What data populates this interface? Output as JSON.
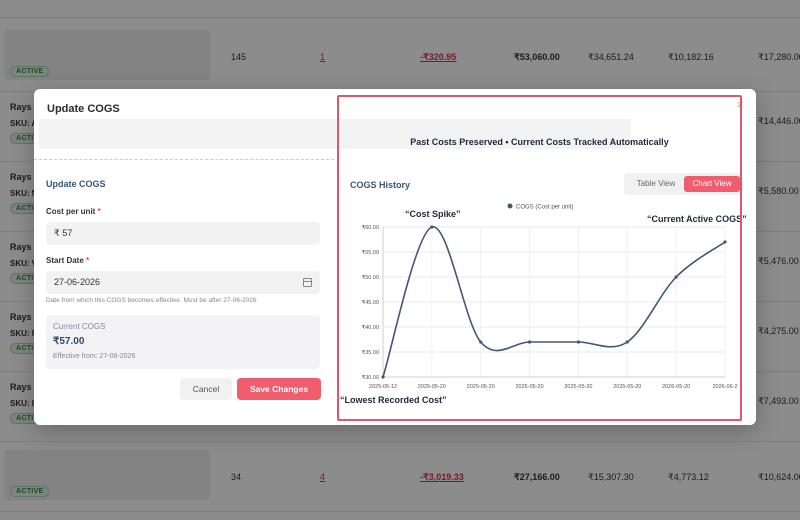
{
  "background": {
    "rows": [
      {
        "top": -20,
        "qty": "",
        "orders": "",
        "loss": "",
        "revenue": "",
        "c1": "",
        "c2": "",
        "c3": ""
      },
      {
        "qty": "145",
        "orders": "1",
        "loss": "-₹320.95",
        "revenue": "₹53,060.00",
        "c1": "₹34,651.24",
        "c2": "₹10,182.16",
        "c3": "₹17,280.00",
        "badge": "ACTIVE"
      },
      {
        "name": "Rays",
        "sku": "SKU: A",
        "badge": "ACTIV",
        "c3": "₹14,446.00"
      },
      {
        "name": "Rays",
        "sku": "SKU: N",
        "badge": "ACTIV",
        "c3": "₹5,580.00"
      },
      {
        "name": "Rays",
        "sku": "SKU: V",
        "badge": "ACTIV",
        "c3": "₹5,476.00"
      },
      {
        "name": "Rays",
        "sku": "SKU: F",
        "badge": "ACTIV",
        "c3": "₹4,275.00"
      },
      {
        "name": "Rays",
        "sku": "SKU: I",
        "badge": "ACTIV",
        "c3": "₹7,493.00"
      },
      {
        "qty": "34",
        "orders": "4",
        "loss": "-₹3,019.33",
        "revenue": "₹27,166.00",
        "c1": "₹15,307.30",
        "c2": "₹4,773.12",
        "c3": "₹10,624.00",
        "badge": "ACTIVE"
      }
    ]
  },
  "modal": {
    "title": "Update COGS",
    "close_label": "×",
    "form": {
      "section_title": "Update COGS",
      "cost_label": "Cost per unit",
      "required_mark": "*",
      "cost_value": "₹ 57",
      "date_label": "Start Date",
      "date_value": "27-06-2026",
      "date_hint": "Date from which this COGS becomes effective. Must be after 27-06-2026",
      "current": {
        "label": "Current COGS",
        "value": "₹57.00",
        "effective": "Effective from: 27-06-2026"
      },
      "cancel_label": "Cancel",
      "save_label": "Save Changes"
    },
    "history": {
      "banner": "Past Costs Preserved • Current Costs Tracked Automatically",
      "title": "COGS History",
      "toggle": {
        "table": "Table View",
        "chart": "Chart View",
        "selected": "chart"
      },
      "annotations": {
        "spike": "“Cost Spike”",
        "current": "“Current Active COGS”",
        "lowest": "“Lowest Recorded Cost”"
      }
    }
  },
  "chart_data": {
    "type": "line",
    "legend": "COGS (Cost per unit)",
    "legend_position": "top",
    "x": [
      "2025-05-12",
      "2025-05-20",
      "2025-05-20",
      "2025-05-20",
      "2025-05-20",
      "2025-05-20",
      "2026-05-20",
      "2026-06-27"
    ],
    "x_labels": [
      "2025-05-12",
      "2025-05-20",
      "2025-05-20",
      "2025-05-20",
      "2025-05-20",
      "2025-05-20",
      "2026-05-20",
      "2026-06-2"
    ],
    "y": [
      30,
      60,
      37,
      37,
      37,
      37,
      50,
      57
    ],
    "y_ticks": [
      "₹30.00",
      "₹35.00",
      "₹40.00",
      "₹45.00",
      "₹50.00",
      "₹55.00",
      "₹60.00"
    ],
    "ylim": [
      30,
      60
    ],
    "grid": true,
    "line_color": "#3f5878"
  }
}
